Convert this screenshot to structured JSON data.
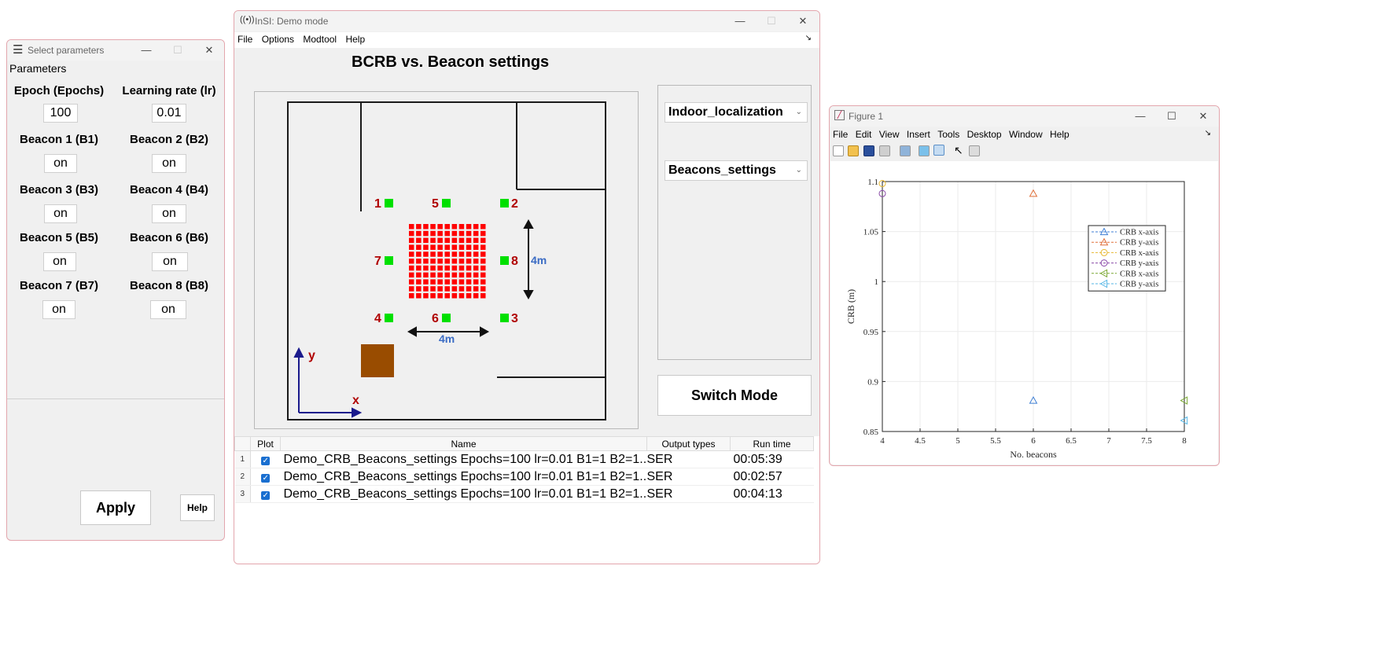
{
  "param_window": {
    "title": "Select parameters",
    "panel_label": "Parameters",
    "fields": [
      {
        "label": "Epoch (Epochs)",
        "value": "100"
      },
      {
        "label": "Learning rate (lr)",
        "value": "0.01"
      },
      {
        "label": "Beacon 1 (B1)",
        "value": "on"
      },
      {
        "label": "Beacon 2 (B2)",
        "value": "on"
      },
      {
        "label": "Beacon 3 (B3)",
        "value": "on"
      },
      {
        "label": "Beacon 4 (B4)",
        "value": "on"
      },
      {
        "label": "Beacon 5 (B5)",
        "value": "on"
      },
      {
        "label": "Beacon 6 (B6)",
        "value": "on"
      },
      {
        "label": "Beacon 7 (B7)",
        "value": "on"
      },
      {
        "label": "Beacon 8 (B8)",
        "value": "on"
      }
    ],
    "apply_label": "Apply",
    "help_label": "Help"
  },
  "main_window": {
    "title": "InSI: Demo mode",
    "menu": [
      "File",
      "Options",
      "Modtool",
      "Help"
    ],
    "heading": "BCRB vs. Beacon settings",
    "dropdown1": "Indoor_localization",
    "dropdown2": "Beacons_settings",
    "switch_label": "Switch Mode",
    "diagram": {
      "beacon_labels": [
        "1",
        "2",
        "3",
        "4",
        "5",
        "6",
        "7",
        "8"
      ],
      "dim_horizontal": "4m",
      "dim_vertical": "4m",
      "axis_x": "x",
      "axis_y": "y",
      "colors": {
        "beacon": "#00e000",
        "grid": "#ff0000",
        "label": "#b00000",
        "dim": "#3a6bc4",
        "axis": "#1a1a8c",
        "box": "#994c00"
      }
    },
    "table": {
      "headers": [
        "Plot",
        "Name",
        "Output types",
        "Run time"
      ],
      "rows": [
        {
          "idx": "1",
          "name": "Demo_CRB_Beacons_settings Epochs=100 lr=0.01 B1=1 B2=1...",
          "type": "SER",
          "time": "00:05:39"
        },
        {
          "idx": "2",
          "name": "Demo_CRB_Beacons_settings Epochs=100 lr=0.01 B1=1 B2=1...",
          "type": "SER",
          "time": "00:02:57"
        },
        {
          "idx": "3",
          "name": "Demo_CRB_Beacons_settings Epochs=100 lr=0.01 B1=1 B2=1...",
          "type": "SER",
          "time": "00:04:13"
        }
      ]
    }
  },
  "figure_window": {
    "title": "Figure 1",
    "menu": [
      "File",
      "Edit",
      "View",
      "Insert",
      "Tools",
      "Desktop",
      "Window",
      "Help"
    ]
  },
  "chart_data": {
    "type": "scatter",
    "xlabel": "No. beacons",
    "ylabel": "CRB (m)",
    "xlim": [
      4,
      8
    ],
    "ylim": [
      0.85,
      1.1
    ],
    "xticks": [
      4,
      4.5,
      5,
      5.5,
      6,
      6.5,
      7,
      7.5,
      8
    ],
    "xtick_labels": [
      "4",
      "4.5",
      "5",
      "5.5",
      "6",
      "6.5",
      "7",
      "7.5",
      "8"
    ],
    "yticks": [
      0.85,
      0.9,
      0.95,
      1,
      1.05,
      1.1
    ],
    "ytick_labels": [
      "0.85",
      "0.9",
      "0.95",
      "1",
      "1.05",
      "1.1"
    ],
    "grid": true,
    "legend_position": "right",
    "series": [
      {
        "name": "CRB x-axis",
        "color": "#3f7fd4",
        "marker": "triangle-up",
        "x": [
          6
        ],
        "y": [
          0.881
        ]
      },
      {
        "name": "CRB y-axis",
        "color": "#e0703a",
        "marker": "triangle-up",
        "x": [
          6
        ],
        "y": [
          1.088
        ]
      },
      {
        "name": "CRB x-axis",
        "color": "#e8b830",
        "marker": "circle",
        "x": [
          4
        ],
        "y": [
          1.098
        ]
      },
      {
        "name": "CRB y-axis",
        "color": "#8a4aa8",
        "marker": "circle",
        "x": [
          4
        ],
        "y": [
          1.088
        ]
      },
      {
        "name": "CRB x-axis",
        "color": "#7aa832",
        "marker": "triangle-left",
        "x": [
          8
        ],
        "y": [
          0.881
        ]
      },
      {
        "name": "CRB y-axis",
        "color": "#55b6e6",
        "marker": "triangle-left",
        "x": [
          8
        ],
        "y": [
          0.861
        ]
      }
    ]
  }
}
